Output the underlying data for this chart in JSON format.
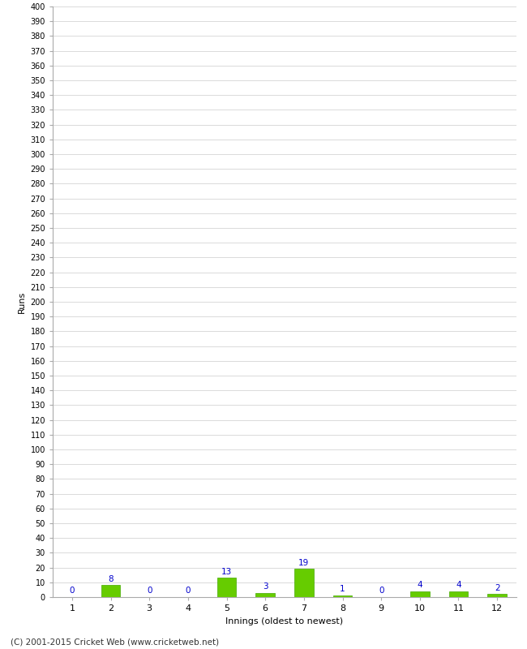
{
  "xlabel": "Innings (oldest to newest)",
  "ylabel": "Runs",
  "categories": [
    1,
    2,
    3,
    4,
    5,
    6,
    7,
    8,
    9,
    10,
    11,
    12
  ],
  "values": [
    0,
    8,
    0,
    0,
    13,
    3,
    19,
    1,
    0,
    4,
    4,
    2
  ],
  "bar_color": "#66cc00",
  "bar_edge_color": "#44aa00",
  "label_color": "#0000cc",
  "ylim": [
    0,
    400
  ],
  "background_color": "#ffffff",
  "grid_color": "#cccccc",
  "footnote": "(C) 2001-2015 Cricket Web (www.cricketweb.net)"
}
